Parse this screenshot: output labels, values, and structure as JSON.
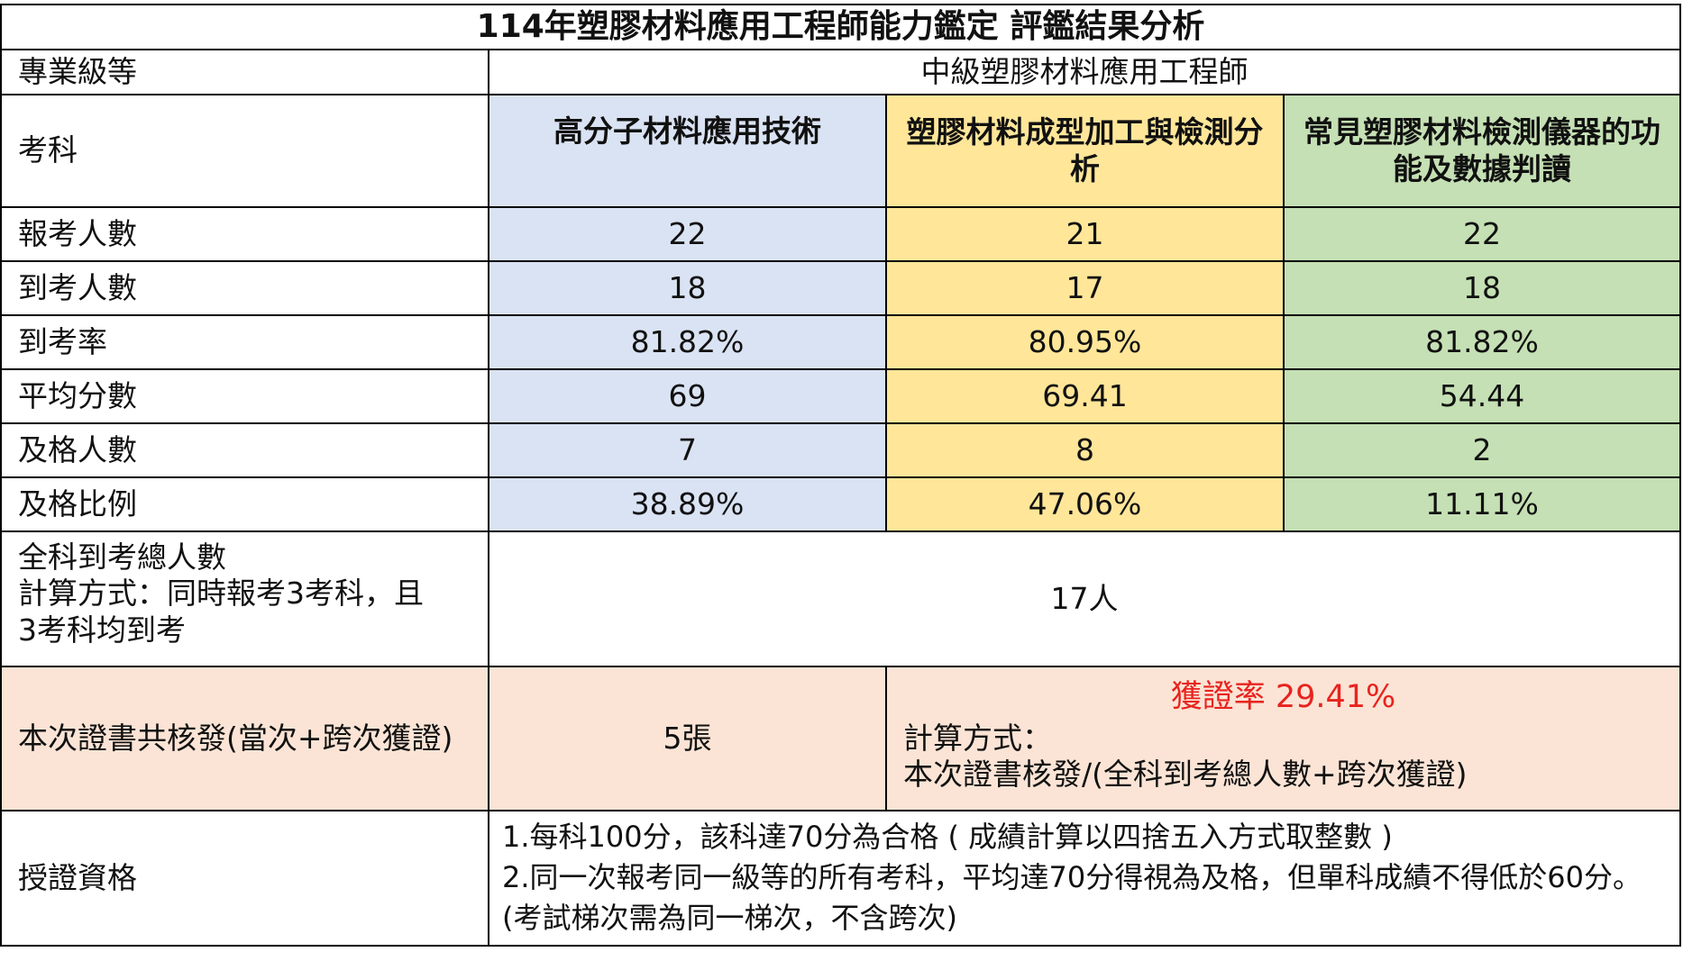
{
  "title": "114年塑膠材料應用工程師能力鑑定 評鑑結果分析",
  "level_label": "專業級等",
  "level_value": "中級塑膠材料應用工程師",
  "subject_label": "考科",
  "subjects": [
    "高分子材料應用技術",
    "塑膠材料成型加工與檢測分析",
    "常見塑膠材料檢測儀器的功能及數據判讀"
  ],
  "rows": [
    {
      "label": "報考人數",
      "values": [
        "22",
        "21",
        "22"
      ]
    },
    {
      "label": "到考人數",
      "values": [
        "18",
        "17",
        "18"
      ]
    },
    {
      "label": "到考率",
      "values": [
        "81.82%",
        "80.95%",
        "81.82%"
      ]
    },
    {
      "label": "平均分數",
      "values": [
        "69",
        "69.41",
        "54.44"
      ]
    },
    {
      "label": "及格人數",
      "values": [
        "7",
        "8",
        "2"
      ]
    },
    {
      "label": "及格比例",
      "values": [
        "38.89%",
        "47.06%",
        "11.11%"
      ]
    }
  ],
  "total": {
    "label_line1": "全科到考總人數",
    "label_line2": "計算方式：同時報考3考科，且",
    "label_line3": "3考科均到考",
    "value": "17人"
  },
  "certificate": {
    "label": "本次證書共核發(當次+跨次獲證)",
    "count": "5張",
    "rate": "獲證率 29.41%",
    "formula_label": "計算方式：",
    "formula": "本次證書核發/(全科到考總人數+跨次獲證)"
  },
  "qualification": {
    "label": "授證資格",
    "line1": "1.每科100分，該科達70分為合格 ( 成績計算以四捨五入方式取整數 )",
    "line2": "2.同一次報考同一級等的所有考科，平均達70分得視為及格，但單科成績不得低於60分。(考試梯次需為同一梯次，不含跨次)"
  },
  "colors": {
    "subject1": "#dae3f3",
    "subject2": "#ffe699",
    "subject3": "#c5e0b4",
    "certificate_row": "#fbe4d5",
    "rate_text": "#e8231f"
  }
}
